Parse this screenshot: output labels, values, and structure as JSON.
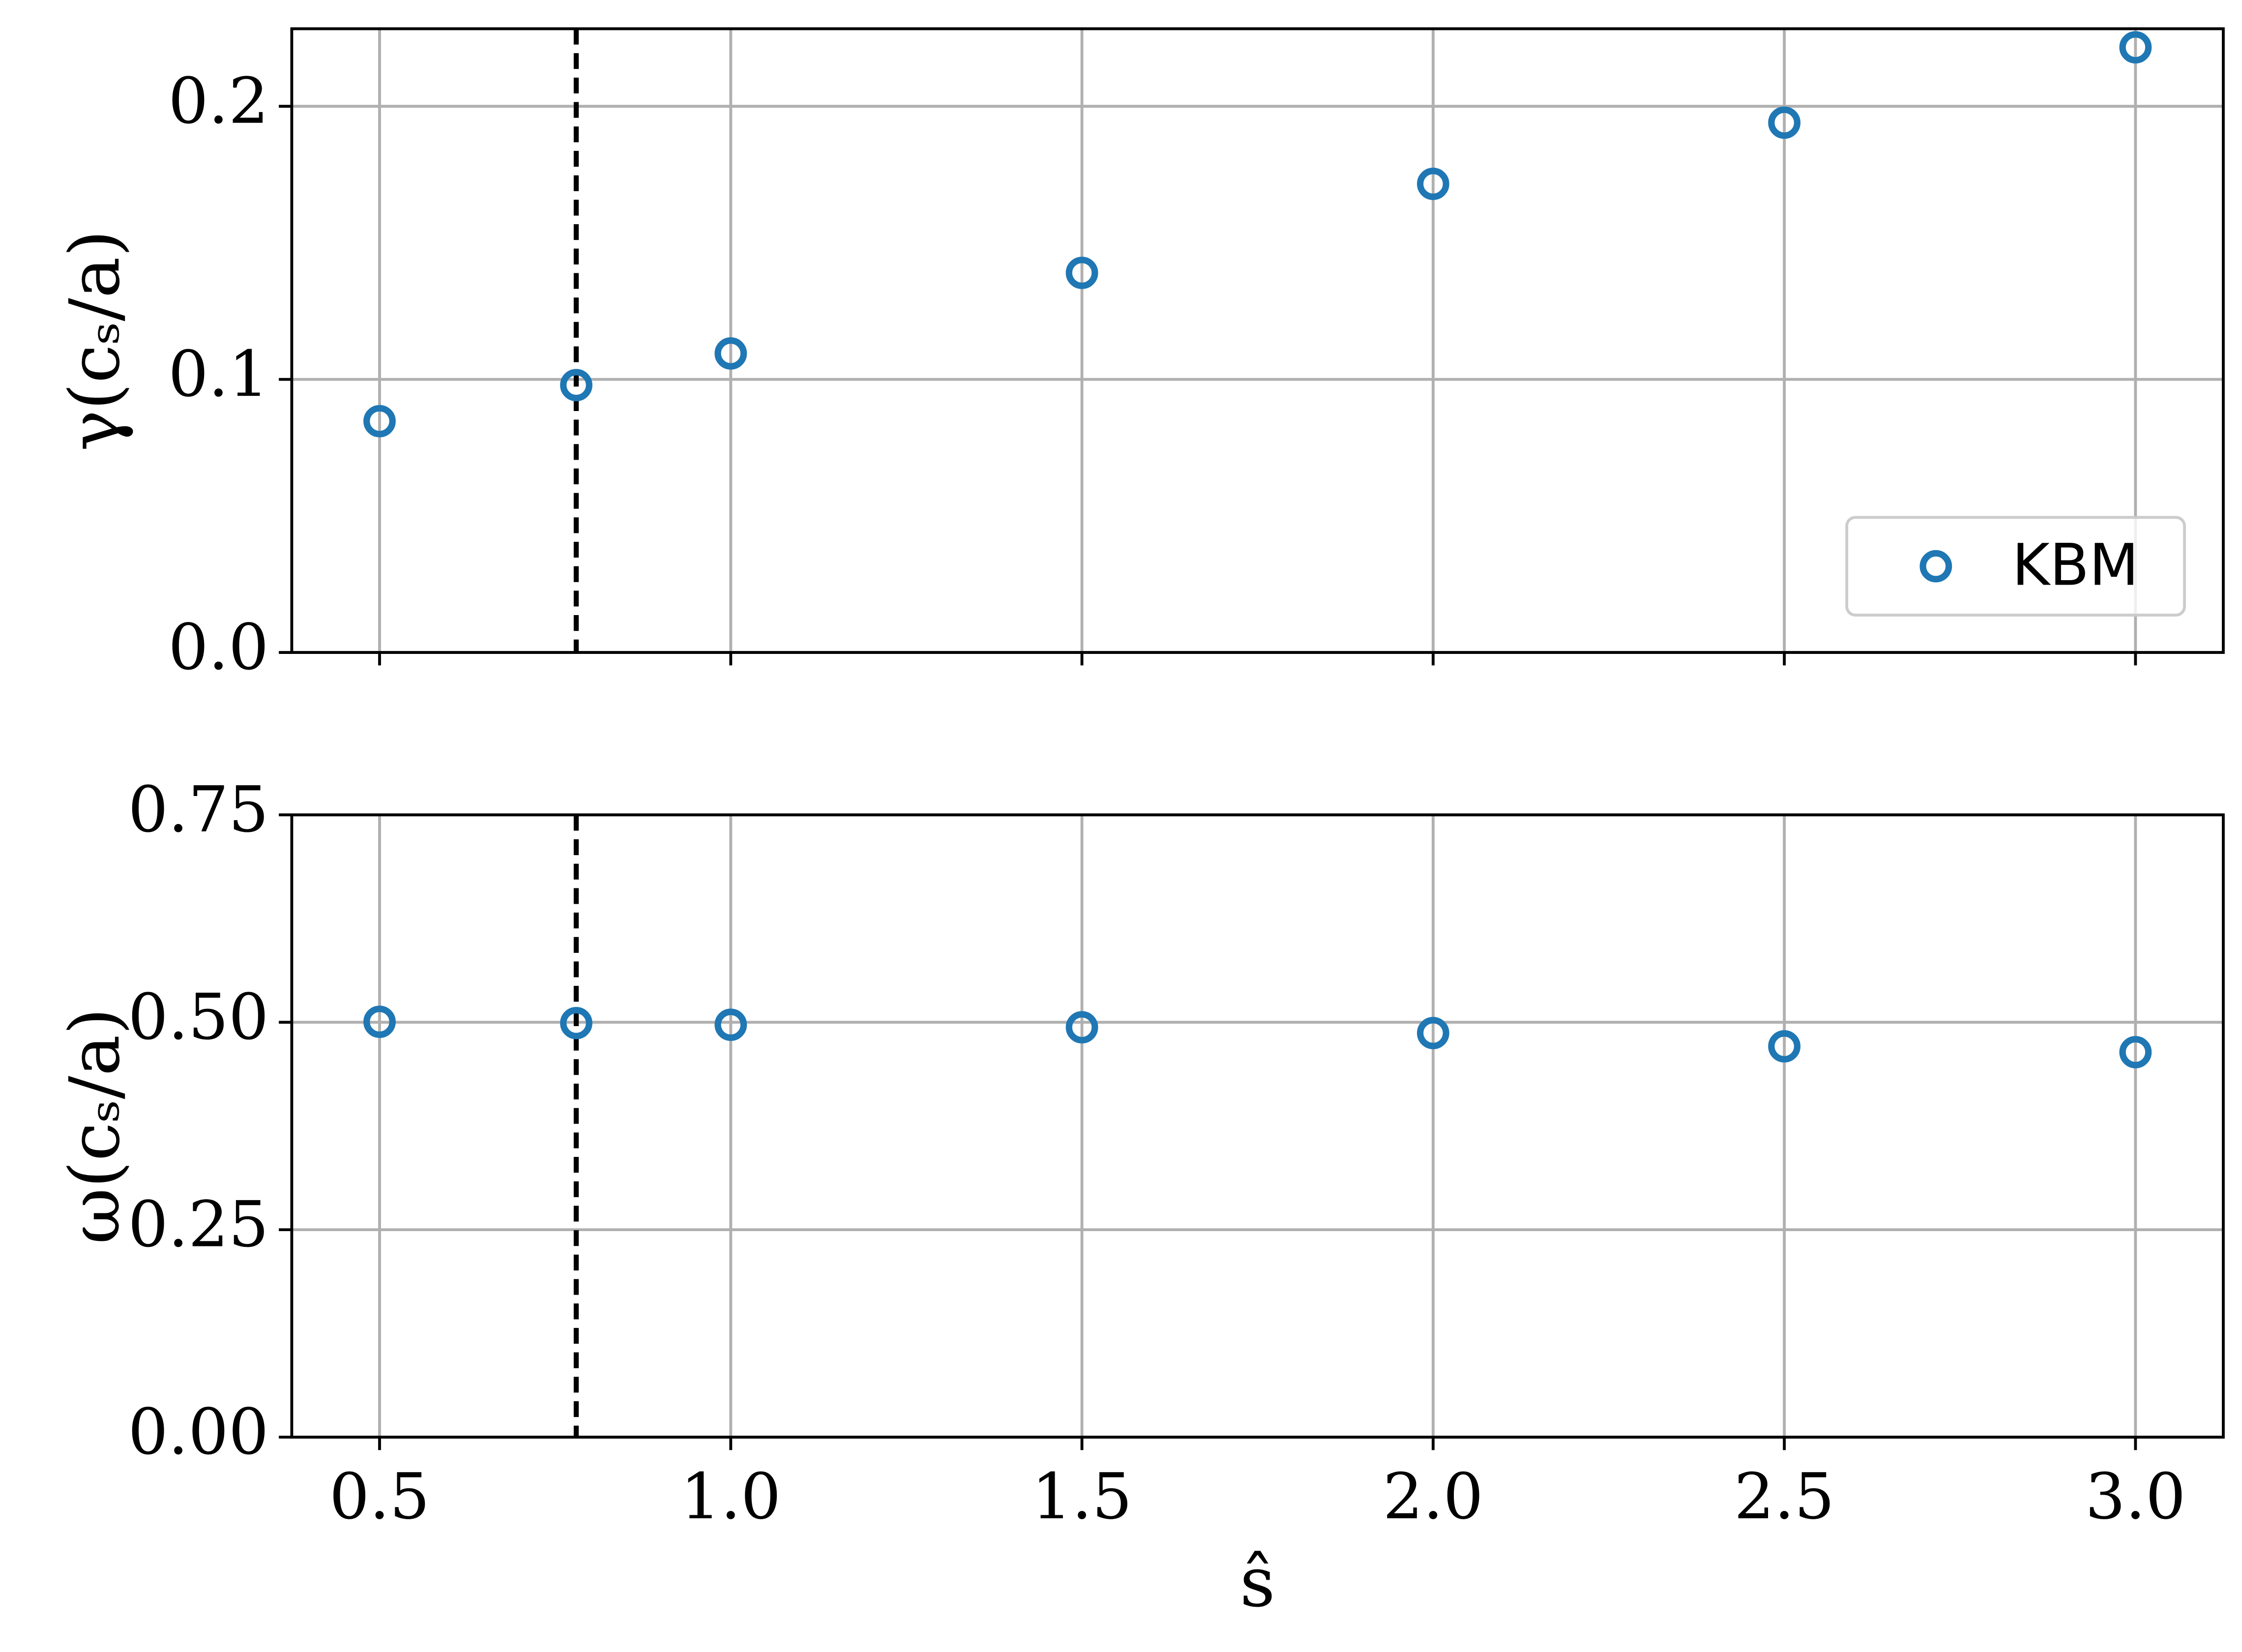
{
  "chart_data": [
    {
      "type": "scatter",
      "ylabel": "γ(cₛ/a)",
      "x": [
        0.5,
        0.78,
        1.0,
        1.5,
        2.0,
        2.5,
        3.0
      ],
      "series": [
        {
          "name": "KBM",
          "color": "#1f77b4",
          "values": [
            0.0847,
            0.0979,
            0.1095,
            0.139,
            0.1716,
            0.194,
            0.2216
          ]
        }
      ],
      "xlim": [
        0.375,
        3.125
      ],
      "xticks": [
        0.5,
        1.0,
        1.5,
        2.0,
        2.5,
        3.0
      ],
      "sharex": true,
      "ylim": [
        0,
        0.2284
      ],
      "yticks": [
        {
          "value": 0,
          "label": "0.0"
        },
        0.1,
        0.2
      ],
      "vline": 0.78,
      "grid": true,
      "legend": "lower right"
    },
    {
      "type": "scatter",
      "ylabel": "ω(cₛ/a)",
      "xlabel": "ŝ",
      "x": [
        0.5,
        0.78,
        1.0,
        1.5,
        2.0,
        2.5,
        3.0
      ],
      "series": [
        {
          "color": "#1f77b4",
          "values": [
            0.5006,
            0.499,
            0.497,
            0.494,
            0.487,
            0.471,
            0.464
          ]
        }
      ],
      "xlim": [
        0.375,
        3.125
      ],
      "xticks": [
        0.5,
        {
          "value": 1.0,
          "label": "1.0"
        },
        1.5,
        {
          "value": 2.0,
          "label": "2.0"
        },
        2.5,
        {
          "value": 3.0,
          "label": "3.0"
        }
      ],
      "ylim": [
        0,
        0.75
      ],
      "yticks": [
        {
          "value": 0,
          "label": "0.00"
        },
        0.25,
        {
          "value": 0.5,
          "label": "0.50"
        },
        0.75
      ],
      "vline": 0.78,
      "grid": true
    }
  ]
}
